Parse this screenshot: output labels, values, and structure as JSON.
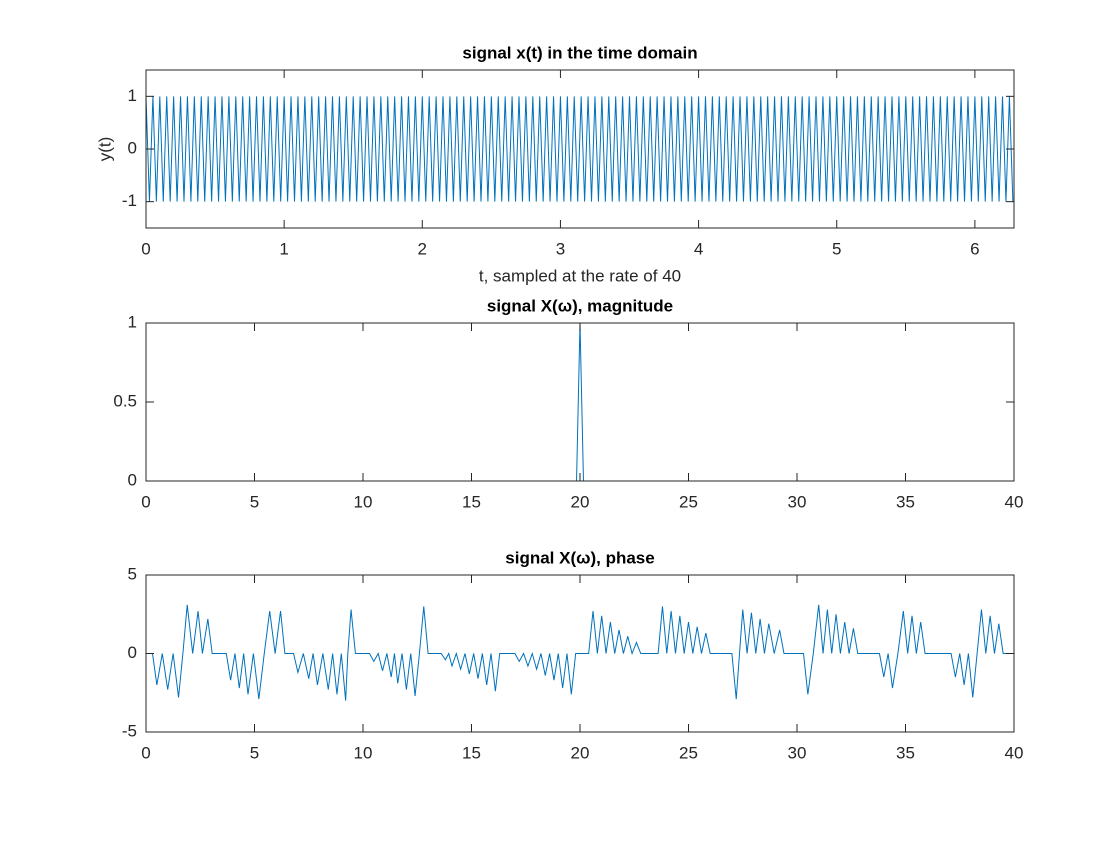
{
  "chart_data": [
    {
      "type": "line",
      "title": "signal x(t) in the time domain",
      "xlabel": "t, sampled at the rate of 40",
      "ylabel": "y(t)",
      "color": "#0072bd",
      "xlim": [
        0,
        6.2832
      ],
      "ylim": [
        -1.5,
        1.5
      ],
      "xticks": [
        0,
        1,
        2,
        3,
        4,
        5,
        6
      ],
      "yticks": [
        -1,
        0,
        1
      ],
      "x": [
        0,
        0.025,
        0.05,
        0.075,
        0.1,
        0.125,
        0.15,
        0.175,
        0.2,
        0.225,
        0.25,
        0.275,
        0.3,
        0.325,
        0.35,
        0.375,
        0.4,
        0.425,
        0.45,
        0.475,
        0.5,
        0.525,
        0.55,
        0.575,
        0.6,
        0.625,
        0.65,
        0.675,
        0.7,
        0.725,
        0.75,
        0.775,
        0.8,
        0.825,
        0.85,
        0.875,
        0.9,
        0.925,
        0.95,
        0.975,
        1,
        1.025,
        1.05,
        1.075,
        1.1,
        1.125,
        1.15,
        1.175,
        1.2,
        1.225,
        1.25,
        1.275,
        1.3,
        1.325,
        1.35,
        1.375,
        1.4,
        1.425,
        1.45,
        1.475,
        1.5,
        1.525,
        1.55,
        1.575,
        1.6,
        1.625,
        1.65,
        1.675,
        1.7,
        1.725,
        1.75,
        1.775,
        1.8,
        1.825,
        1.85,
        1.875,
        1.9,
        1.925,
        1.95,
        1.975,
        2,
        2.025,
        2.05,
        2.075,
        2.1,
        2.125,
        2.15,
        2.175,
        2.2,
        2.225,
        2.25,
        2.275,
        2.3,
        2.325,
        2.35,
        2.375,
        2.4,
        2.425,
        2.45,
        2.475,
        2.5,
        2.525,
        2.55,
        2.575,
        2.6,
        2.625,
        2.65,
        2.675,
        2.7,
        2.725,
        2.75,
        2.775,
        2.8,
        2.825,
        2.85,
        2.875,
        2.9,
        2.925,
        2.95,
        2.975,
        3,
        3.025,
        3.05,
        3.075,
        3.1,
        3.125,
        3.15,
        3.175,
        3.2,
        3.225,
        3.25,
        3.275,
        3.3,
        3.325,
        3.35,
        3.375,
        3.4,
        3.425,
        3.45,
        3.475,
        3.5,
        3.525,
        3.55,
        3.575,
        3.6,
        3.625,
        3.65,
        3.675,
        3.7,
        3.725,
        3.75,
        3.775,
        3.8,
        3.825,
        3.85,
        3.875,
        3.9,
        3.925,
        3.95,
        3.975,
        4,
        4.025,
        4.05,
        4.075,
        4.1,
        4.125,
        4.15,
        4.175,
        4.2,
        4.225,
        4.25,
        4.275,
        4.3,
        4.325,
        4.35,
        4.375,
        4.4,
        4.425,
        4.45,
        4.475,
        4.5,
        4.525,
        4.55,
        4.575,
        4.6,
        4.625,
        4.65,
        4.675,
        4.7,
        4.725,
        4.75,
        4.775,
        4.8,
        4.825,
        4.85,
        4.875,
        4.9,
        4.925,
        4.95,
        4.975,
        5,
        5.025,
        5.05,
        5.075,
        5.1,
        5.125,
        5.15,
        5.175,
        5.2,
        5.225,
        5.25,
        5.275,
        5.3,
        5.325,
        5.35,
        5.375,
        5.4,
        5.425,
        5.45,
        5.475,
        5.5,
        5.525,
        5.55,
        5.575,
        5.6,
        5.625,
        5.65,
        5.675,
        5.7,
        5.725,
        5.75,
        5.775,
        5.8,
        5.825,
        5.85,
        5.875,
        5.9,
        5.925,
        5.95,
        5.975,
        6,
        6.025,
        6.05,
        6.075,
        6.1,
        6.125,
        6.15,
        6.175,
        6.2,
        6.225,
        6.25,
        6.275
      ],
      "values": [
        1,
        -1,
        1,
        -1,
        1,
        -1,
        1,
        -1,
        1,
        -1,
        1,
        -1,
        1,
        -1,
        1,
        -1,
        1,
        -1,
        1,
        -1,
        1,
        -1,
        1,
        -1,
        1,
        -1,
        1,
        -1,
        1,
        -1,
        1,
        -1,
        1,
        -1,
        1,
        -1,
        1,
        -1,
        1,
        -1,
        1,
        -1,
        1,
        -1,
        1,
        -1,
        1,
        -1,
        1,
        -1,
        1,
        -1,
        1,
        -1,
        1,
        -1,
        1,
        -1,
        1,
        -1,
        1,
        -1,
        1,
        -1,
        1,
        -1,
        1,
        -1,
        1,
        -1,
        1,
        -1,
        1,
        -1,
        1,
        -1,
        1,
        -1,
        1,
        -1,
        1,
        -1,
        1,
        -1,
        1,
        -1,
        1,
        -1,
        1,
        -1,
        1,
        -1,
        1,
        -1,
        1,
        -1,
        1,
        -1,
        1,
        -1,
        1,
        -1,
        1,
        -1,
        1,
        -1,
        1,
        -1,
        1,
        -1,
        1,
        -1,
        1,
        -1,
        1,
        -1,
        1,
        -1,
        1,
        -1,
        1,
        -1,
        1,
        -1,
        1,
        -1,
        1,
        -1,
        1,
        -1,
        1,
        -1,
        1,
        -1,
        1,
        -1,
        1,
        -1,
        1,
        -1,
        1,
        -1,
        1,
        -1,
        1,
        -1,
        1,
        -1,
        1,
        -1,
        1,
        -1,
        1,
        -1,
        1,
        -1,
        1,
        -1,
        1,
        -1,
        1,
        -1,
        1,
        -1,
        1,
        -1,
        1,
        -1,
        1,
        -1,
        1,
        -1,
        1,
        -1,
        1,
        -1,
        1,
        -1,
        1,
        -1,
        1,
        -1,
        1,
        -1,
        1,
        -1,
        1,
        -1,
        1,
        -1,
        1,
        -1,
        1,
        -1,
        1,
        -1,
        1,
        -1,
        1,
        -1,
        1,
        -1,
        1,
        -1,
        1,
        -1,
        1,
        -1,
        1,
        -1,
        1,
        -1,
        1,
        -1,
        1,
        -1,
        1,
        -1,
        1,
        -1,
        1,
        -1,
        1,
        -1,
        1,
        -1,
        1,
        -1,
        1,
        -1,
        1,
        -1,
        1,
        -1,
        1,
        -1,
        1,
        -1,
        1,
        -1,
        1,
        -1,
        1,
        -1,
        1,
        -1,
        1,
        -1,
        1,
        -1,
        1,
        -1
      ]
    },
    {
      "type": "line",
      "title": "signal X(ω), magnitude",
      "color": "#0072bd",
      "xlim": [
        0,
        40
      ],
      "ylim": [
        0,
        1
      ],
      "xticks": [
        0,
        5,
        10,
        15,
        20,
        25,
        30,
        35,
        40
      ],
      "yticks": [
        0,
        0.5,
        1
      ],
      "x": [
        0,
        19.84,
        20,
        20.16,
        39.84
      ],
      "values": [
        0,
        0,
        1,
        0,
        0
      ]
    },
    {
      "type": "line",
      "title": "signal X(ω), phase",
      "color": "#0072bd",
      "xlim": [
        0,
        40
      ],
      "ylim": [
        -5,
        5
      ],
      "xticks": [
        0,
        5,
        10,
        15,
        20,
        25,
        30,
        35,
        40
      ],
      "yticks": [
        -5,
        0,
        5
      ],
      "x": [
        0,
        0.3,
        0.5,
        0.75,
        1.0,
        1.25,
        1.5,
        1.7,
        1.9,
        2.15,
        2.4,
        2.6,
        2.85,
        3.05,
        3.7,
        3.9,
        4.1,
        4.3,
        4.5,
        4.7,
        4.95,
        5.2,
        5.45,
        5.7,
        5.95,
        6.2,
        6.4,
        6.8,
        7.0,
        7.25,
        7.5,
        7.7,
        7.9,
        8.15,
        8.4,
        8.6,
        8.8,
        9.0,
        9.2,
        9.3,
        9.45,
        9.65,
        10.3,
        10.5,
        10.7,
        10.9,
        11.1,
        11.3,
        11.45,
        11.6,
        11.8,
        12.0,
        12.2,
        12.4,
        12.6,
        12.8,
        13.0,
        13.6,
        13.8,
        13.95,
        14.1,
        14.3,
        14.5,
        14.7,
        14.9,
        15.1,
        15.3,
        15.5,
        15.7,
        15.9,
        16.1,
        16.3,
        17.0,
        17.2,
        17.4,
        17.6,
        17.8,
        18.0,
        18.2,
        18.4,
        18.6,
        18.8,
        19.0,
        19.2,
        19.4,
        19.6,
        19.8,
        20.4,
        20.6,
        20.8,
        21.0,
        21.2,
        21.4,
        21.6,
        21.8,
        22.0,
        22.2,
        22.4,
        22.6,
        22.8,
        23.6,
        23.8,
        24.0,
        24.2,
        24.4,
        24.6,
        24.8,
        25.0,
        25.2,
        25.4,
        25.6,
        25.8,
        26.0,
        27.0,
        27.2,
        27.35,
        27.5,
        27.7,
        27.9,
        28.1,
        28.3,
        28.5,
        28.7,
        28.95,
        29.2,
        29.4,
        30.3,
        30.5,
        30.75,
        31.0,
        31.2,
        31.4,
        31.6,
        31.8,
        32.0,
        32.2,
        32.4,
        32.6,
        32.8,
        33.8,
        34.0,
        34.2,
        34.4,
        34.65,
        34.9,
        35.1,
        35.3,
        35.5,
        35.7,
        35.9,
        37.1,
        37.3,
        37.5,
        37.7,
        37.9,
        38.1,
        38.3,
        38.5,
        38.7,
        38.9,
        39.1,
        39.3,
        39.5,
        39.84
      ],
      "values": [
        0,
        0,
        -2.0,
        0,
        -2.3,
        0,
        -2.8,
        0,
        3.1,
        0,
        2.7,
        0,
        2.2,
        0,
        0,
        -1.7,
        0,
        -2.2,
        0,
        -2.6,
        0,
        -2.9,
        0,
        2.7,
        0,
        2.7,
        0,
        0,
        -1.2,
        0,
        -1.6,
        0,
        -2.0,
        0,
        -2.3,
        0,
        -2.6,
        0,
        -3.0,
        0,
        2.8,
        0,
        0,
        -0.5,
        0,
        -1.1,
        0,
        -1.5,
        0,
        -1.9,
        0,
        -2.3,
        0,
        -2.7,
        0,
        3.0,
        0,
        0,
        -0.4,
        0,
        -0.8,
        0,
        -1.0,
        0,
        -1.3,
        0,
        -1.6,
        0,
        -2.0,
        0,
        -2.4,
        0,
        0,
        -0.5,
        0,
        -0.8,
        0,
        -1.0,
        0,
        -1.4,
        0,
        -1.7,
        0,
        -2.2,
        0,
        -2.6,
        0,
        0,
        2.7,
        0,
        2.4,
        0,
        2.0,
        0,
        1.5,
        0,
        1.1,
        0,
        0.7,
        0,
        0,
        3.0,
        0,
        2.7,
        0,
        2.4,
        0,
        2.0,
        0,
        1.7,
        0,
        1.3,
        0,
        0,
        -2.9,
        0,
        2.8,
        0,
        2.6,
        0,
        2.2,
        0,
        1.9,
        0,
        1.5,
        0,
        0,
        -2.6,
        0,
        3.1,
        0,
        2.8,
        0,
        2.5,
        0,
        2.0,
        0,
        1.6,
        0,
        0,
        -1.5,
        0,
        -2.2,
        0,
        2.7,
        0,
        2.4,
        0,
        2.0,
        0,
        0,
        -1.5,
        0,
        -2.0,
        0,
        -2.8,
        0,
        2.8,
        0,
        2.4,
        0,
        1.9,
        0,
        0
      ]
    }
  ]
}
